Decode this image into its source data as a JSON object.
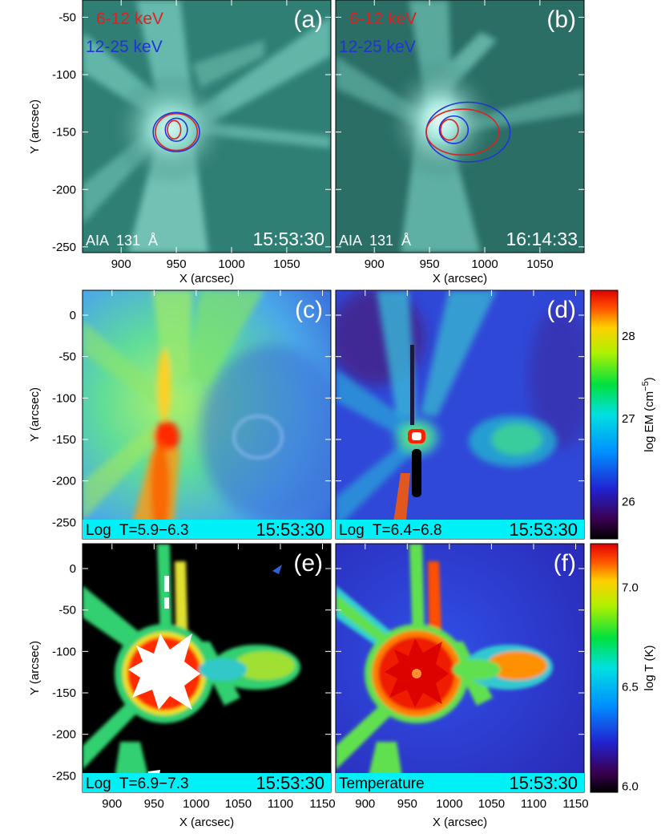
{
  "chart_data": [
    {
      "panel": "(a)",
      "type": "heatmap",
      "instrument_label": "AIA  131  Å",
      "time": "15:53:30",
      "xlabel": "X (arcsec)",
      "ylabel": "Y (arcsec)",
      "xlim": [
        865,
        1090
      ],
      "ylim": [
        -255,
        -35
      ],
      "xticks": [
        900,
        950,
        1000,
        1050
      ],
      "yticks": [
        -50,
        -100,
        -150,
        -200,
        -250
      ],
      "legend": [
        {
          "name": "6-12 keV",
          "color": "#e0201e"
        },
        {
          "name": "12-25 keV",
          "color": "#2233d8"
        }
      ],
      "contours": [
        {
          "series": "12-25 keV",
          "cx": 950,
          "cy": -150,
          "rx": 21,
          "ry": 17
        },
        {
          "series": "6-12 keV",
          "cx": 950,
          "cy": -150,
          "rx": 19,
          "ry": 16
        },
        {
          "series": "12-25 keV",
          "cx": 950,
          "cy": -148,
          "rx": 10,
          "ry": 10
        },
        {
          "series": "6-12 keV",
          "cx": 948,
          "cy": -148,
          "rx": 6,
          "ry": 8
        }
      ]
    },
    {
      "panel": "(b)",
      "type": "heatmap",
      "instrument_label": "AIA  131  Å",
      "time": "16:14:33",
      "xlabel": "X (arcsec)",
      "xlim": [
        865,
        1090
      ],
      "ylim": [
        -255,
        -35
      ],
      "xticks": [
        900,
        950,
        1000,
        1050
      ],
      "legend": [
        {
          "name": "6-12 keV",
          "color": "#e0201e"
        },
        {
          "name": "12-25 keV",
          "color": "#2233d8"
        }
      ],
      "contours": [
        {
          "series": "12-25 keV",
          "cx": 985,
          "cy": -150,
          "rx": 38,
          "ry": 26
        },
        {
          "series": "6-12 keV",
          "cx": 980,
          "cy": -150,
          "rx": 33,
          "ry": 20
        },
        {
          "series": "12-25 keV",
          "cx": 972,
          "cy": -148,
          "rx": 13,
          "ry": 12
        },
        {
          "series": "6-12 keV",
          "cx": 968,
          "cy": -148,
          "rx": 8,
          "ry": 9
        }
      ]
    },
    {
      "panel": "(c)",
      "type": "heatmap",
      "band": "Log  T=5.9−6.3",
      "time": "15:53:30",
      "ylabel": "Y (arcsec)",
      "xlim": [
        865,
        1160
      ],
      "ylim": [
        -270,
        30
      ],
      "yticks": [
        0,
        -50,
        -100,
        -150,
        -200,
        -250
      ]
    },
    {
      "panel": "(d)",
      "type": "heatmap",
      "band": "Log  T=6.4−6.8",
      "time": "15:53:30",
      "xlim": [
        865,
        1160
      ],
      "ylim": [
        -270,
        30
      ],
      "colorbar": {
        "label": "log EM (cm",
        "label_sup": "−5",
        "label_end": ")",
        "ticks": [
          28,
          27,
          26
        ],
        "range": [
          25.55,
          28.55
        ]
      }
    },
    {
      "panel": "(e)",
      "type": "heatmap",
      "band": "Log  T=6.9−7.3",
      "time": "15:53:30",
      "xlabel": "X (arcsec)",
      "ylabel": "Y (arcsec)",
      "xlim": [
        865,
        1160
      ],
      "ylim": [
        -270,
        30
      ],
      "xticks": [
        900,
        950,
        1000,
        1050,
        1100,
        1150
      ],
      "yticks": [
        0,
        -50,
        -100,
        -150,
        -200,
        -250
      ]
    },
    {
      "panel": "(f)",
      "type": "heatmap",
      "band": "Temperature",
      "time": "15:53:30",
      "xlabel": "X (arcsec)",
      "xlim": [
        865,
        1160
      ],
      "ylim": [
        -270,
        30
      ],
      "xticks": [
        900,
        950,
        1000,
        1050,
        1100,
        1150
      ],
      "colorbar": {
        "label": "log T (K)",
        "ticks": [
          7.0,
          6.5,
          6.0
        ],
        "range": [
          5.97,
          7.22
        ]
      }
    }
  ]
}
